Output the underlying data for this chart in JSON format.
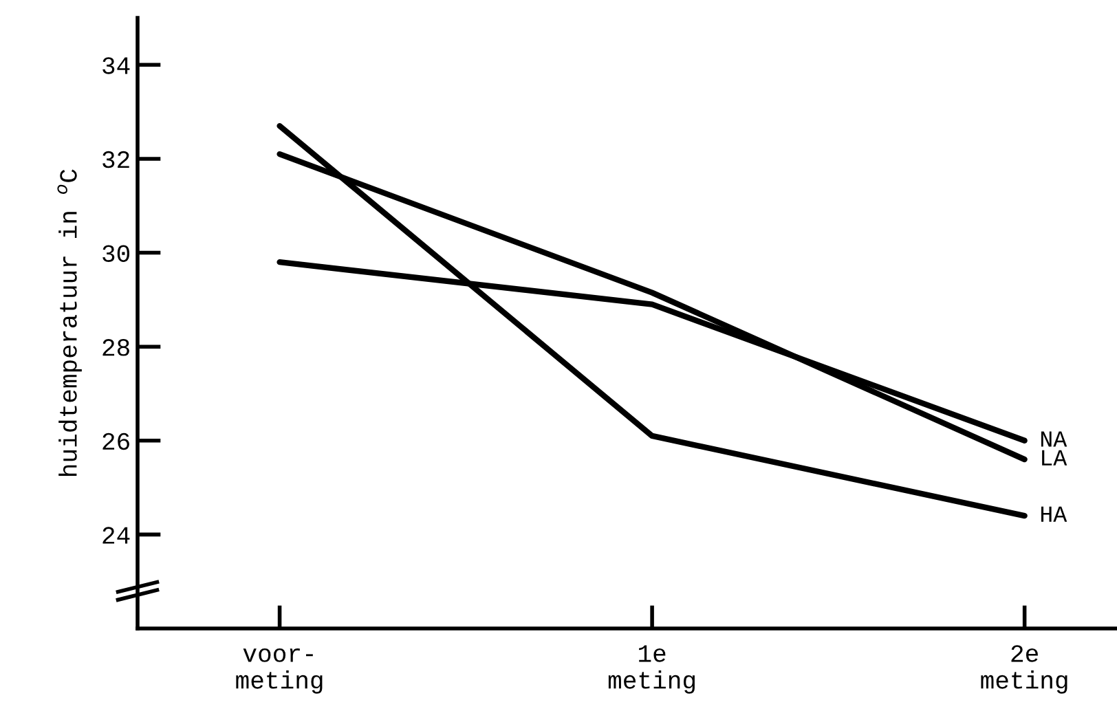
{
  "chart_data": {
    "type": "line",
    "ylabel": "huidtemperatuur in $^{o}$C",
    "categories": [
      "voor-\nmeting",
      "1e\nmeting",
      "2e\nmeting"
    ],
    "series": [
      {
        "name": "NA",
        "color": "#000000",
        "values": [
          29.8,
          28.9,
          26.0
        ]
      },
      {
        "name": "LA",
        "color": "#000000",
        "values": [
          32.1,
          29.15,
          25.6
        ]
      },
      {
        "name": "HA",
        "color": "#000000",
        "values": [
          32.7,
          26.1,
          24.4
        ]
      }
    ],
    "ylim": [
      22,
      35
    ],
    "yticks": [
      24,
      26,
      28,
      30,
      32,
      34
    ],
    "grid": false,
    "legend": false,
    "marker": "none",
    "line_style": "solid"
  }
}
